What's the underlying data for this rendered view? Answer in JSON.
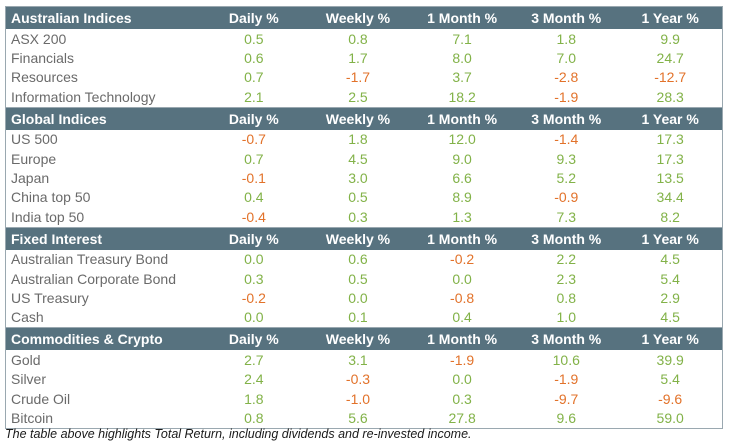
{
  "colors": {
    "header_bg": "#57727f",
    "header_text": "#ffffff",
    "positive": "#82b248",
    "negative": "#e2722a",
    "label": "#6a6a6a"
  },
  "columns": [
    "Daily %",
    "Weekly %",
    "1 Month %",
    "3 Month %",
    "1 Year %"
  ],
  "sections": [
    {
      "title": "Australian Indices",
      "rows": [
        {
          "name": "ASX 200",
          "values": [
            "0.5",
            "0.8",
            "7.1",
            "1.8",
            "9.9"
          ]
        },
        {
          "name": "Financials",
          "values": [
            "0.6",
            "1.7",
            "8.0",
            "7.0",
            "24.7"
          ]
        },
        {
          "name": "Resources",
          "values": [
            "0.7",
            "-1.7",
            "3.7",
            "-2.8",
            "-12.7"
          ]
        },
        {
          "name": "Information Technology",
          "values": [
            "2.1",
            "2.5",
            "18.2",
            "-1.9",
            "28.3"
          ]
        }
      ]
    },
    {
      "title": "Global Indices",
      "rows": [
        {
          "name": "US 500",
          "values": [
            "-0.7",
            "1.8",
            "12.0",
            "-1.4",
            "17.3"
          ]
        },
        {
          "name": "Europe",
          "values": [
            "0.7",
            "4.5",
            "9.0",
            "9.3",
            "17.3"
          ]
        },
        {
          "name": "Japan",
          "values": [
            "-0.1",
            "3.0",
            "6.6",
            "5.2",
            "13.5"
          ]
        },
        {
          "name": "China top 50",
          "values": [
            "0.4",
            "0.5",
            "8.9",
            "-0.9",
            "34.4"
          ]
        },
        {
          "name": "India top 50",
          "values": [
            "-0.4",
            "0.3",
            "1.3",
            "7.3",
            "8.2"
          ]
        }
      ]
    },
    {
      "title": "Fixed Interest",
      "rows": [
        {
          "name": "Australian Treasury Bond",
          "values": [
            "0.0",
            "0.6",
            "-0.2",
            "2.2",
            "4.5"
          ]
        },
        {
          "name": "Australian Corporate Bond",
          "values": [
            "0.3",
            "0.5",
            "0.0",
            "2.3",
            "5.4"
          ]
        },
        {
          "name": "US Treasury",
          "values": [
            "-0.2",
            "0.0",
            "-0.8",
            "0.8",
            "2.9"
          ]
        },
        {
          "name": "Cash",
          "values": [
            "0.0",
            "0.1",
            "0.4",
            "1.0",
            "4.5"
          ]
        }
      ]
    },
    {
      "title": "Commodities & Crypto",
      "rows": [
        {
          "name": "Gold",
          "values": [
            "2.7",
            "3.1",
            "-1.9",
            "10.6",
            "39.9"
          ]
        },
        {
          "name": "Silver",
          "values": [
            "2.4",
            "-0.3",
            "0.0",
            "-1.9",
            "5.4"
          ]
        },
        {
          "name": "Crude Oil",
          "values": [
            "1.8",
            "-1.0",
            "0.3",
            "-9.7",
            "-9.6"
          ]
        },
        {
          "name": "Bitcoin",
          "values": [
            "0.8",
            "5.6",
            "27.8",
            "9.6",
            "59.0"
          ]
        }
      ]
    }
  ],
  "note": "The table above highlights Total Return, including dividends and re-invested income."
}
